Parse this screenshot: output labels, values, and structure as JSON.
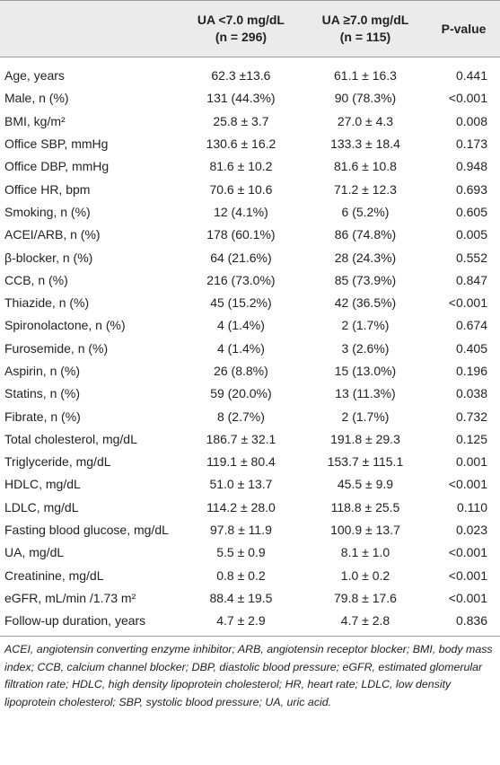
{
  "table": {
    "columns": [
      {
        "title": "UA <7.0 mg/dL",
        "subtitle": "(n = 296)"
      },
      {
        "title": "UA ≥7.0 mg/dL",
        "subtitle": "(n = 115)"
      },
      {
        "title": "P-value"
      }
    ],
    "rows": [
      [
        "Age, years",
        "62.3 ±13.6",
        "61.1 ± 16.3",
        "0.441"
      ],
      [
        "Male, n (%)",
        "131 (44.3%)",
        "90 (78.3%)",
        "<0.001"
      ],
      [
        "BMI, kg/m²",
        "25.8 ± 3.7",
        "27.0 ± 4.3",
        "0.008"
      ],
      [
        "Office SBP, mmHg",
        "130.6 ± 16.2",
        "133.3 ± 18.4",
        "0.173"
      ],
      [
        "Office DBP, mmHg",
        "81.6 ± 10.2",
        "81.6 ± 10.8",
        "0.948"
      ],
      [
        "Office HR, bpm",
        "70.6 ± 10.6",
        "71.2 ± 12.3",
        "0.693"
      ],
      [
        "Smoking, n (%)",
        "12 (4.1%)",
        "6 (5.2%)",
        "0.605"
      ],
      [
        "ACEI/ARB, n (%)",
        "178 (60.1%)",
        "86 (74.8%)",
        "0.005"
      ],
      [
        "β-blocker, n (%)",
        "64 (21.6%)",
        "28 (24.3%)",
        "0.552"
      ],
      [
        "CCB, n (%)",
        "216 (73.0%)",
        "85 (73.9%)",
        "0.847"
      ],
      [
        "Thiazide, n (%)",
        "45 (15.2%)",
        "42 (36.5%)",
        "<0.001"
      ],
      [
        "Spironolactone, n (%)",
        "4 (1.4%)",
        "2 (1.7%)",
        "0.674"
      ],
      [
        "Furosemide, n (%)",
        "4 (1.4%)",
        "3 (2.6%)",
        "0.405"
      ],
      [
        "Aspirin, n (%)",
        "26 (8.8%)",
        "15 (13.0%)",
        "0.196"
      ],
      [
        "Statins, n (%)",
        "59 (20.0%)",
        "13 (11.3%)",
        "0.038"
      ],
      [
        "Fibrate, n (%)",
        "8 (2.7%)",
        "2 (1.7%)",
        "0.732"
      ],
      [
        "Total cholesterol, mg/dL",
        "186.7 ± 32.1",
        "191.8 ± 29.3",
        "0.125"
      ],
      [
        "Triglyceride, mg/dL",
        "119.1 ± 80.4",
        "153.7 ± 115.1",
        "0.001"
      ],
      [
        "HDLC, mg/dL",
        "51.0 ± 13.7",
        "45.5 ± 9.9",
        "<0.001"
      ],
      [
        "LDLC, mg/dL",
        "114.2 ± 28.0",
        "118.8 ± 25.5",
        "0.110"
      ],
      [
        "Fasting blood glucose, mg/dL",
        "97.8 ± 11.9",
        "100.9 ± 13.7",
        "0.023"
      ],
      [
        "UA, mg/dL",
        "5.5 ± 0.9",
        "8.1 ± 1.0",
        "<0.001"
      ],
      [
        "Creatinine, mg/dL",
        "0.8 ± 0.2",
        "1.0 ± 0.2",
        "<0.001"
      ],
      [
        "eGFR, mL/min /1.73 m²",
        "88.4 ± 19.5",
        "79.8 ± 17.6",
        "<0.001"
      ],
      [
        "Follow-up duration, years",
        "4.7 ± 2.9",
        "4.7 ± 2.8",
        "0.836"
      ]
    ],
    "footnote": "ACEI, angiotensin converting enzyme inhibitor; ARB, angiotensin receptor blocker; BMI, body mass index; CCB, calcium channel blocker; DBP, diastolic blood pressure; eGFR, estimated glomerular filtration rate; HDLC, high density lipoprotein cholesterol; HR, heart rate; LDLC, low density lipoprotein cholesterol; SBP, systolic blood pressure; UA, uric acid."
  }
}
